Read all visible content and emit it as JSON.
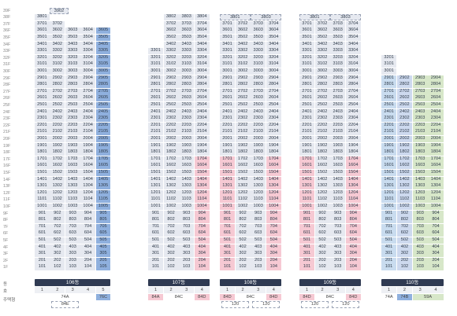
{
  "floors": [
    "39F",
    "38F",
    "37F",
    "36F",
    "35F",
    "34F",
    "33F",
    "32F",
    "31F",
    "30F",
    "29F",
    "28F",
    "27F",
    "26F",
    "25F",
    "24F",
    "23F",
    "22F",
    "21F",
    "20F",
    "19F",
    "18F",
    "17F",
    "16F",
    "15F",
    "14F",
    "13F",
    "12F",
    "11F",
    "10F",
    "9F",
    "8F",
    "7F",
    "6F",
    "5F",
    "4F",
    "3F",
    "2F",
    "1F"
  ],
  "labels": {
    "dong": "동",
    "ho": "호",
    "type": "주택형"
  },
  "colors": {
    "gray": "#e6e9f0",
    "blue": "#cdd9ee",
    "deep": "#8fb0de",
    "pink": "#f6c9d3",
    "green": "#d7e7c9",
    "header": "#2f3a52"
  },
  "buildings": [
    {
      "id": "b106",
      "name": "106동",
      "lines": [
        "1",
        "2",
        "3",
        "4",
        "5"
      ],
      "maxFloor": 38,
      "lineColors": [
        "gray",
        "gray",
        "gray",
        "gray",
        "deep"
      ],
      "lineMax": [
        38,
        37,
        36,
        36,
        36
      ],
      "topMerged": {
        "label": "3902",
        "span": [
          1,
          1
        ]
      },
      "types": [
        {
          "label": "74A",
          "span": [
            1,
            4
          ],
          "style": "plain"
        },
        {
          "label": "76C",
          "span": [
            5,
            5
          ],
          "style": "blue"
        }
      ],
      "typeBoxes": [
        {
          "label": "84E",
          "span": [
            2,
            3
          ]
        }
      ]
    },
    {
      "id": "b107",
      "name": "107동",
      "lines": [
        "1",
        "2",
        "3",
        "4"
      ],
      "lineColors": [
        "gray",
        "gray",
        "gray",
        "gray"
      ],
      "pinkFromLine4": true,
      "lineMax": [
        33,
        38,
        38,
        38
      ],
      "types": [
        {
          "label": "84A",
          "span": [
            1,
            1
          ],
          "style": "pink"
        },
        {
          "label": "84C",
          "span": [
            2,
            3
          ],
          "style": "plain"
        },
        {
          "label": "84D",
          "span": [
            4,
            4
          ],
          "style": "pink"
        }
      ],
      "typeBoxes": []
    },
    {
      "id": "b108",
      "name": "108동",
      "lines": [
        "1",
        "2",
        "3",
        "4"
      ],
      "lineColors": [
        "gray",
        "gray",
        "gray",
        "gray"
      ],
      "lineMax": [
        37,
        37,
        37,
        37
      ],
      "topMerged2": [
        {
          "label": "3801",
          "span": [
            1,
            2
          ]
        },
        {
          "label": "3803",
          "span": [
            3,
            4
          ]
        }
      ],
      "types": [
        {
          "label": "84D",
          "span": [
            1,
            1
          ],
          "style": "pink"
        },
        {
          "label": "84C",
          "span": [
            2,
            3
          ],
          "style": "plain"
        },
        {
          "label": "84D",
          "span": [
            4,
            4
          ],
          "style": "pink"
        }
      ],
      "typeBoxes": [
        {
          "label": "120",
          "span": [
            1,
            2
          ]
        },
        {
          "label": "120",
          "span": [
            3,
            4
          ]
        }
      ]
    },
    {
      "id": "b109",
      "name": "109동",
      "lines": [
        "1",
        "2",
        "3",
        "4"
      ],
      "lineColors": [
        "gray",
        "gray",
        "gray",
        "gray"
      ],
      "lineMax": [
        37,
        37,
        37,
        37
      ],
      "topMerged2": [
        {
          "label": "3801",
          "span": [
            1,
            2
          ]
        },
        {
          "label": "3803",
          "span": [
            3,
            4
          ]
        }
      ],
      "types": [
        {
          "label": "84D",
          "span": [
            1,
            1
          ],
          "style": "pink"
        },
        {
          "label": "84C",
          "span": [
            2,
            3
          ],
          "style": "plain"
        },
        {
          "label": "84D",
          "span": [
            4,
            4
          ],
          "style": "pink"
        }
      ],
      "typeBoxes": [
        {
          "label": "120",
          "span": [
            1,
            2
          ]
        },
        {
          "label": "120",
          "span": [
            3,
            4
          ]
        }
      ]
    },
    {
      "id": "b110",
      "name": "110동",
      "lines": [
        "1",
        "2",
        "3",
        "4"
      ],
      "lineColors": [
        "lblue",
        "blue",
        "green",
        "green"
      ],
      "lineMax": [
        32,
        29,
        29,
        29
      ],
      "types": [
        {
          "label": "74A",
          "span": [
            1,
            1
          ],
          "style": "plain"
        },
        {
          "label": "74B",
          "span": [
            2,
            2
          ],
          "style": "blue"
        },
        {
          "label": "59A",
          "span": [
            3,
            4
          ],
          "style": "green"
        }
      ],
      "typeBoxes": []
    }
  ]
}
